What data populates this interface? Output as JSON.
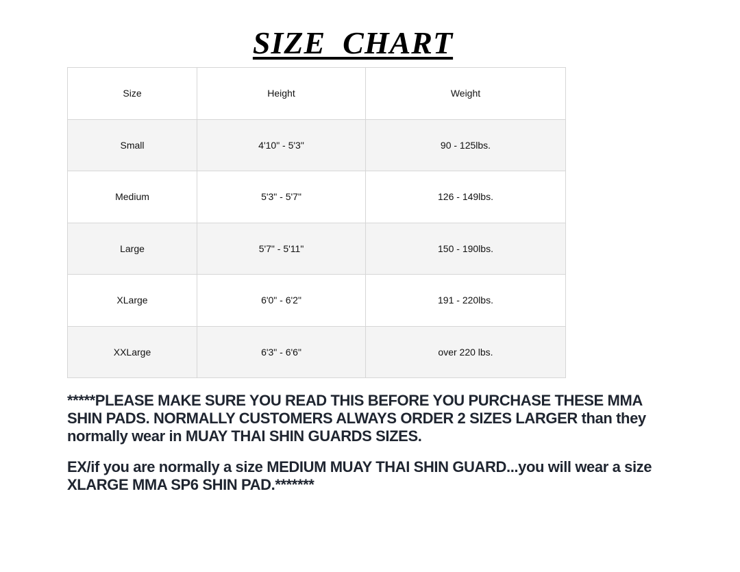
{
  "title": "SIZE  CHART",
  "table": {
    "headers": [
      "Size",
      "Height",
      "Weight"
    ],
    "rows": [
      [
        "Small",
        "4'10\" - 5'3\"",
        "90 - 125lbs."
      ],
      [
        "Medium",
        "5'3\" - 5'7\"",
        "126 - 149lbs."
      ],
      [
        "Large",
        "5'7\" - 5'11\"",
        "150 - 190lbs."
      ],
      [
        "XLarge",
        "6'0\" - 6'2\"",
        "191 - 220lbs."
      ],
      [
        "XXLarge",
        "6'3\" - 6'6\"",
        "over 220 lbs."
      ]
    ]
  },
  "notes": {
    "warning_lines": [
      "*****PLEASE MAKE SURE YOU READ THIS BEFORE YOU PURCHASE THESE MMA",
      "SHIN PADS. NORMALLY CUSTOMERS ALWAYS ORDER 2 SIZES LARGER than they",
      "normally wear in MUAY THAI SHIN GUARDS SIZES."
    ],
    "example_lines": [
      "EX/if you are normally a size MEDIUM MUAY THAI SHIN GUARD...you will wear a size",
      "XLARGE MMA SP6 SHIN PAD.*******"
    ]
  }
}
